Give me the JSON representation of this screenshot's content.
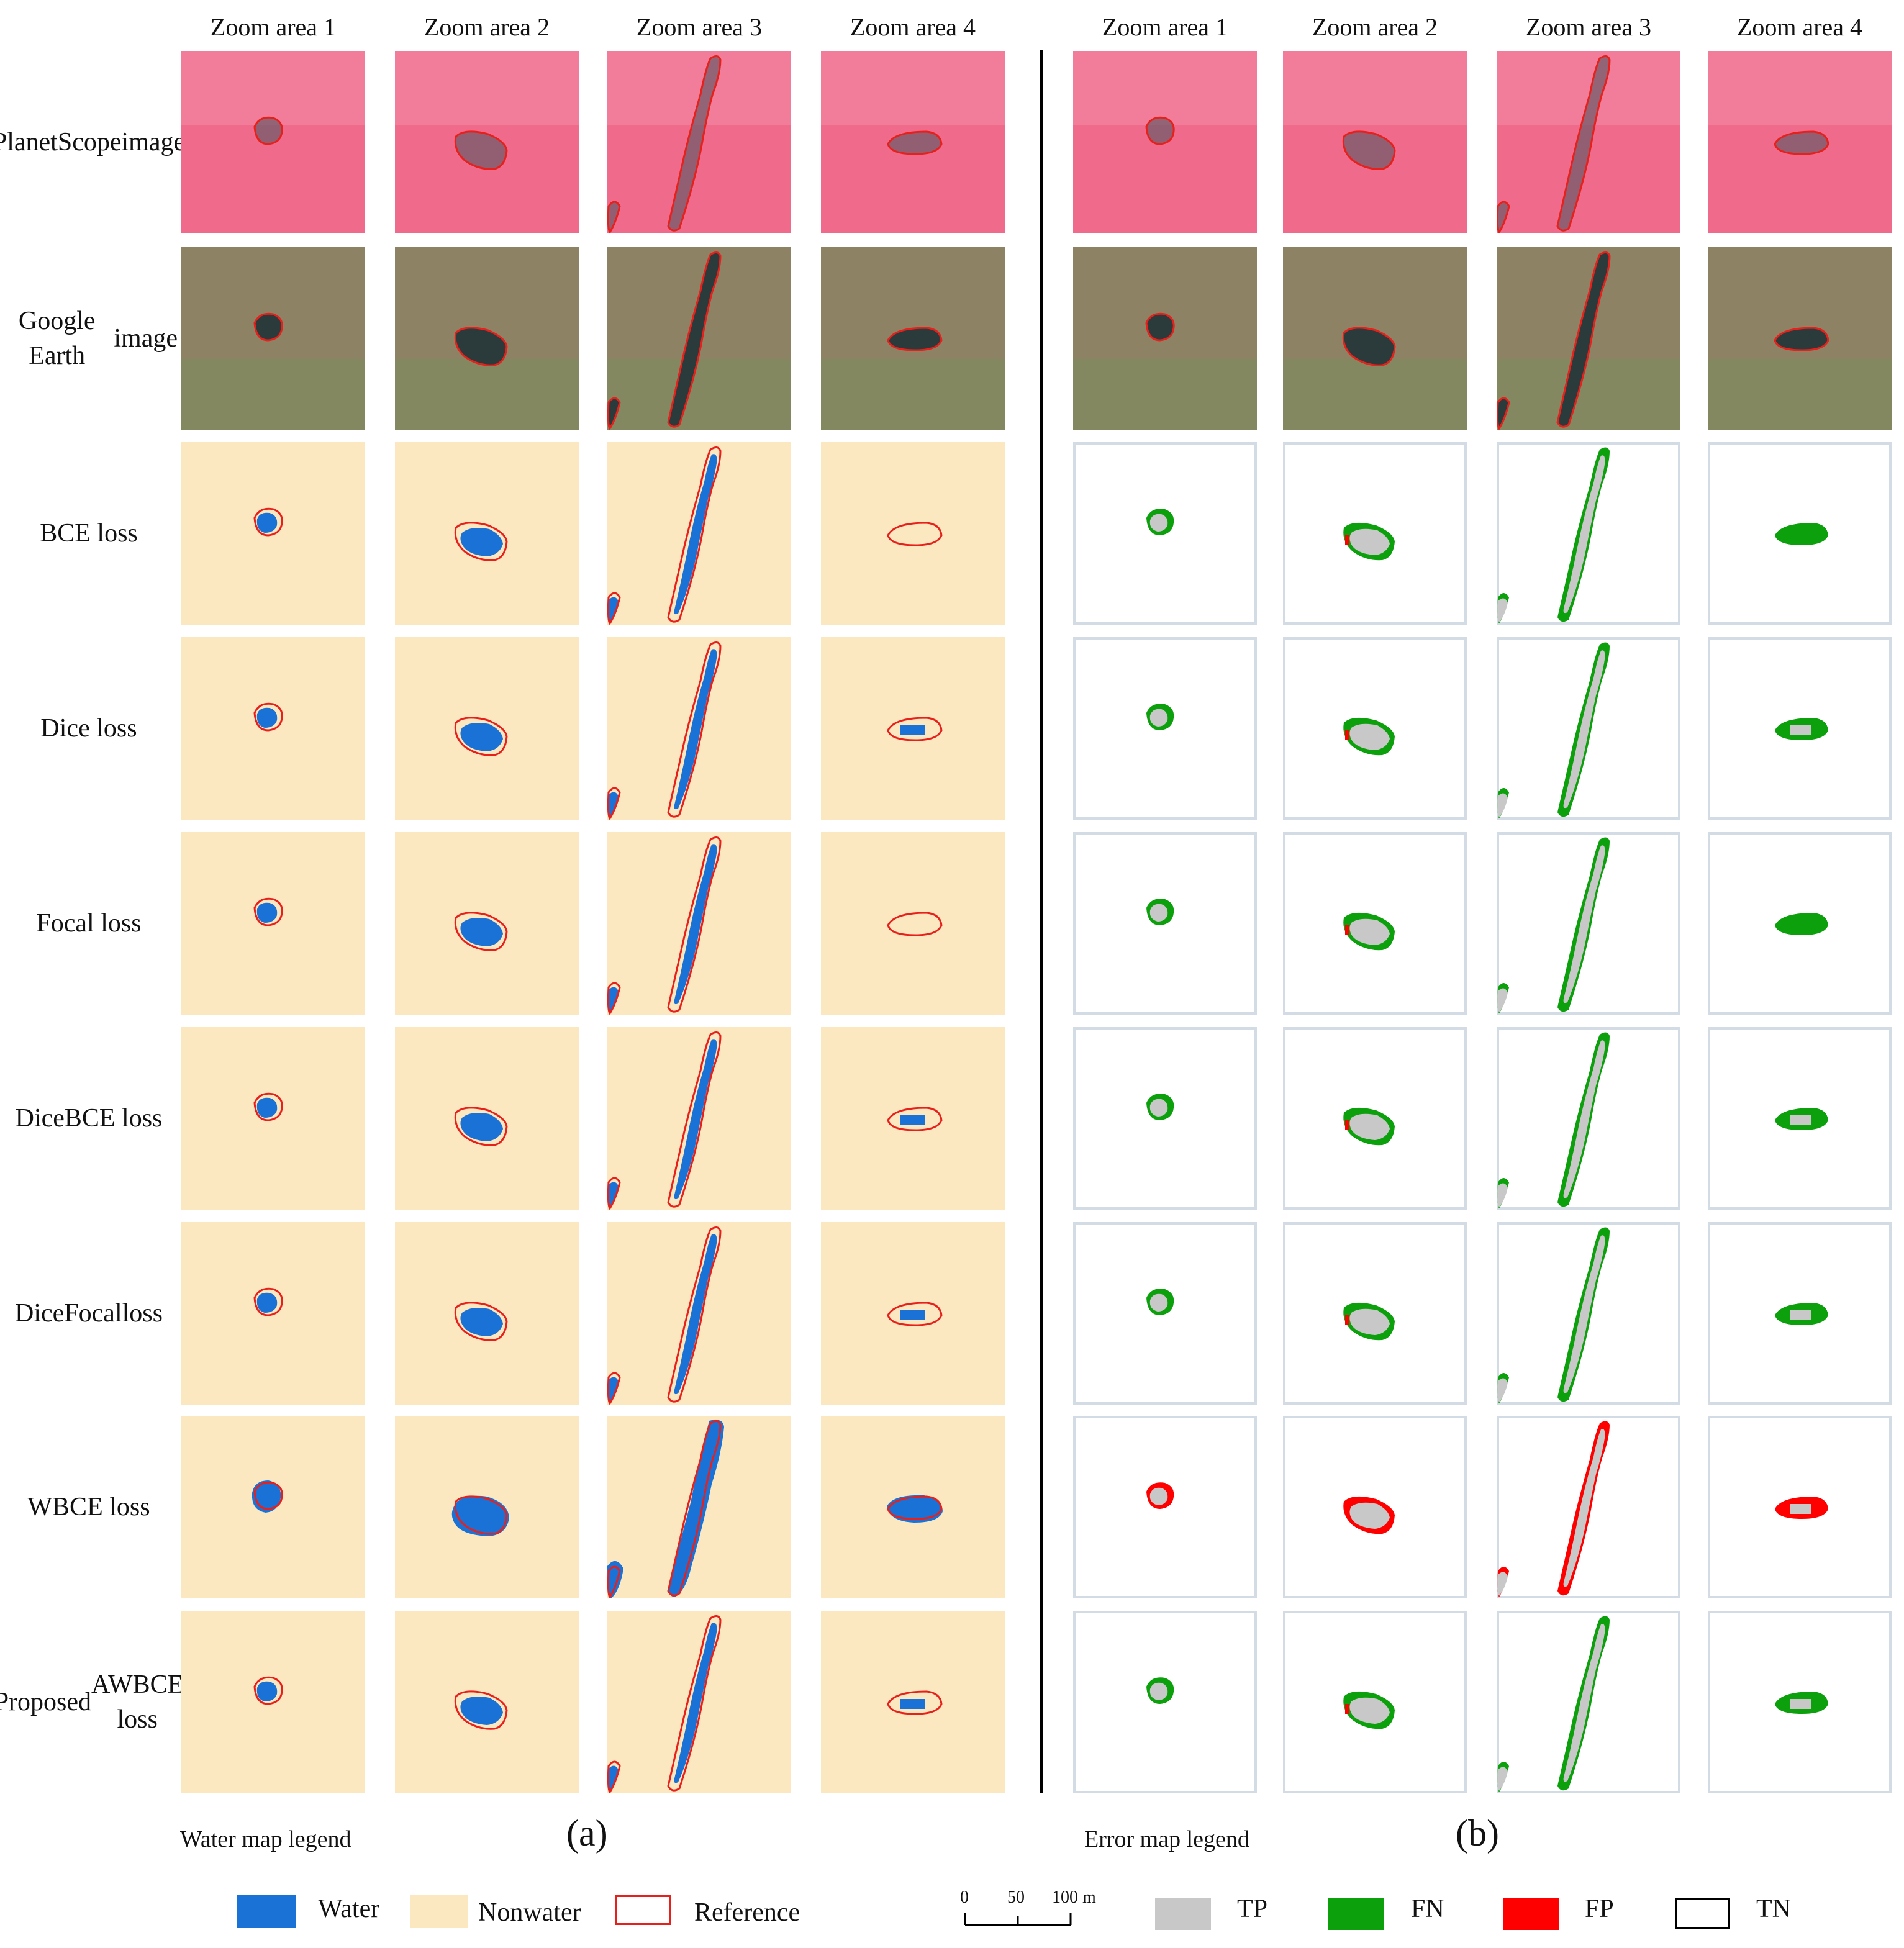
{
  "columns": {
    "a": [
      "Zoom area 1",
      "Zoom area 2",
      "Zoom area 3",
      "Zoom area 4"
    ],
    "b": [
      "Zoom area 1",
      "Zoom area 2",
      "Zoom area 3",
      "Zoom area 4"
    ]
  },
  "rows": [
    {
      "label_line1": "PlanetScope",
      "label_line2": "image"
    },
    {
      "label_line1": "Google Earth",
      "label_line2": "image"
    },
    {
      "label_line1": "BCE loss",
      "label_line2": ""
    },
    {
      "label_line1": "Dice loss",
      "label_line2": ""
    },
    {
      "label_line1": "Focal loss",
      "label_line2": ""
    },
    {
      "label_line1": "DiceBCE loss",
      "label_line2": ""
    },
    {
      "label_line1": "DiceFocal",
      "label_line2": "loss"
    },
    {
      "label_line1": "WBCE loss",
      "label_line2": ""
    },
    {
      "label_line1": "Proposed",
      "label_line2": "AWBCE loss"
    }
  ],
  "panel_labels": {
    "a": "(a)",
    "b": "(b)"
  },
  "water_legend": {
    "title": "Water map legend",
    "items": [
      "Water",
      "Nonwater",
      "Reference"
    ]
  },
  "error_legend": {
    "title": "Error map legend",
    "items": [
      "TP",
      "FN",
      "FP",
      "TN"
    ]
  },
  "scale_bar": {
    "ticks": [
      "0",
      "50",
      "100 m"
    ]
  },
  "colors": {
    "water": "#1a72d6",
    "nonwater": "#fbe8c0",
    "reference": "#e8201c",
    "tp": "#c8c8c8",
    "fn": "#0ca00c",
    "fp": "#ff0000",
    "tn": "#ffffff",
    "planetscope_bg": "#f06a8c",
    "google_bg": "#8d8264"
  }
}
